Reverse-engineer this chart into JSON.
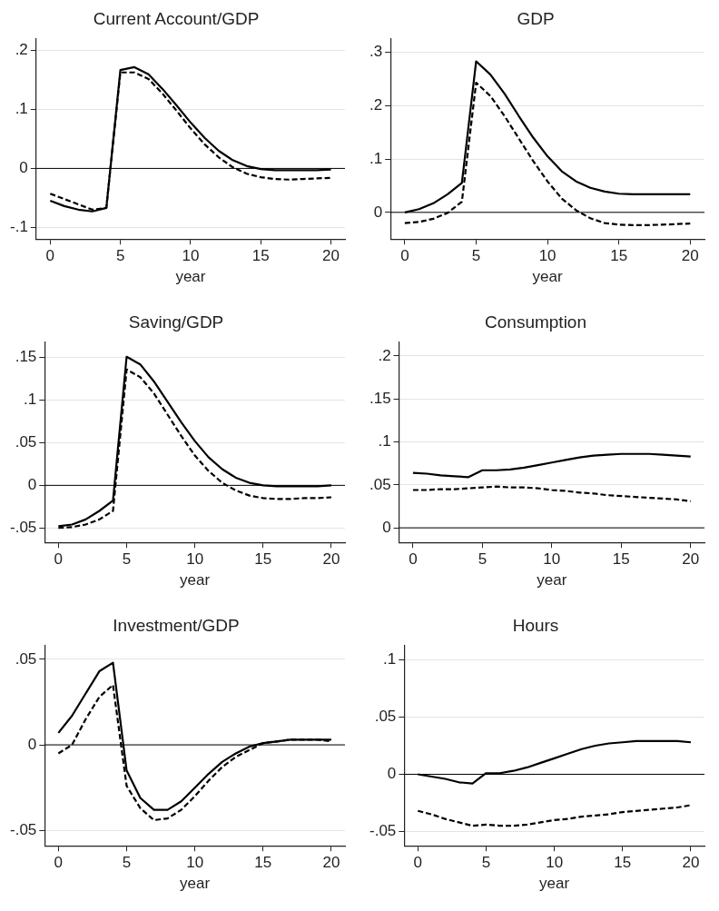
{
  "chart_data": [
    {
      "type": "line",
      "title": "Current Account/GDP",
      "xlabel": "year",
      "x": [
        0,
        1,
        2,
        3,
        4,
        5,
        6,
        7,
        8,
        9,
        10,
        11,
        12,
        13,
        14,
        15,
        16,
        17,
        18,
        19,
        20
      ],
      "xlim": [
        -1,
        21
      ],
      "xticks": [
        0,
        5,
        10,
        15,
        20
      ],
      "ylim": [
        -0.12,
        0.22
      ],
      "yticks": [
        {
          "value": -0.1,
          "label": "-.1"
        },
        {
          "value": 0,
          "label": "0"
        },
        {
          "value": 0.1,
          "label": ".1"
        },
        {
          "value": 0.2,
          "label": ".2"
        }
      ],
      "grid": "y",
      "legend": false,
      "marker": "none",
      "ref_lines": [
        {
          "axis": "y",
          "value": 0,
          "color": "#000000"
        }
      ],
      "series": [
        {
          "color": "#000000",
          "line_style": "solid",
          "values": [
            -0.055,
            -0.064,
            -0.07,
            -0.073,
            -0.067,
            0.167,
            0.172,
            0.16,
            0.135,
            0.107,
            0.078,
            0.052,
            0.03,
            0.014,
            0.004,
            -0.001,
            -0.003,
            -0.003,
            -0.003,
            -0.003,
            -0.002
          ]
        },
        {
          "color": "#000000",
          "line_style": "dashed",
          "values": [
            -0.043,
            -0.052,
            -0.061,
            -0.07,
            -0.067,
            0.163,
            0.163,
            0.152,
            0.127,
            0.098,
            0.068,
            0.041,
            0.019,
            0.002,
            -0.009,
            -0.015,
            -0.018,
            -0.019,
            -0.018,
            -0.017,
            -0.016
          ]
        }
      ]
    },
    {
      "type": "line",
      "title": "GDP",
      "xlabel": "year",
      "x": [
        0,
        1,
        2,
        3,
        4,
        5,
        6,
        7,
        8,
        9,
        10,
        11,
        12,
        13,
        14,
        15,
        16,
        17,
        18,
        19,
        20
      ],
      "xlim": [
        -1,
        21
      ],
      "xticks": [
        0,
        5,
        10,
        15,
        20
      ],
      "ylim": [
        -0.05,
        0.325
      ],
      "yticks": [
        {
          "value": 0,
          "label": "0"
        },
        {
          "value": 0.1,
          "label": ".1"
        },
        {
          "value": 0.2,
          "label": ".2"
        },
        {
          "value": 0.3,
          "label": ".3"
        }
      ],
      "grid": "y",
      "legend": false,
      "marker": "none",
      "ref_lines": [
        {
          "axis": "y",
          "value": 0,
          "color": "#000000"
        }
      ],
      "series": [
        {
          "color": "#000000",
          "line_style": "solid",
          "values": [
            0,
            0.006,
            0.017,
            0.034,
            0.055,
            0.283,
            0.258,
            0.222,
            0.18,
            0.14,
            0.105,
            0.077,
            0.058,
            0.046,
            0.039,
            0.035,
            0.034,
            0.034,
            0.034,
            0.034,
            0.034
          ]
        },
        {
          "color": "#000000",
          "line_style": "dashed",
          "values": [
            -0.02,
            -0.018,
            -0.012,
            -0.001,
            0.02,
            0.243,
            0.218,
            0.18,
            0.138,
            0.096,
            0.058,
            0.026,
            0.004,
            -0.011,
            -0.02,
            -0.023,
            -0.024,
            -0.024,
            -0.023,
            -0.022,
            -0.021
          ]
        }
      ]
    },
    {
      "type": "line",
      "title": "Saving/GDP",
      "xlabel": "year",
      "x": [
        0,
        1,
        2,
        3,
        4,
        5,
        6,
        7,
        8,
        9,
        10,
        11,
        12,
        13,
        14,
        15,
        16,
        17,
        18,
        19,
        20
      ],
      "xlim": [
        -1,
        21
      ],
      "xticks": [
        0,
        5,
        10,
        15,
        20
      ],
      "ylim": [
        -0.067,
        0.168
      ],
      "yticks": [
        {
          "value": -0.05,
          "label": "-.05"
        },
        {
          "value": 0,
          "label": "0"
        },
        {
          "value": 0.05,
          "label": ".05"
        },
        {
          "value": 0.1,
          "label": ".1"
        },
        {
          "value": 0.15,
          "label": ".15"
        }
      ],
      "grid": "y",
      "legend": false,
      "marker": "none",
      "ref_lines": [
        {
          "axis": "y",
          "value": 0,
          "color": "#000000"
        }
      ],
      "series": [
        {
          "color": "#000000",
          "line_style": "solid",
          "values": [
            -0.048,
            -0.046,
            -0.04,
            -0.03,
            -0.018,
            0.151,
            0.142,
            0.122,
            0.098,
            0.074,
            0.052,
            0.033,
            0.019,
            0.009,
            0.003,
            0,
            -0.001,
            -0.001,
            -0.001,
            -0.001,
            0
          ]
        },
        {
          "color": "#000000",
          "line_style": "dashed",
          "values": [
            -0.05,
            -0.049,
            -0.046,
            -0.04,
            -0.03,
            0.136,
            0.127,
            0.108,
            0.083,
            0.058,
            0.035,
            0.017,
            0.003,
            -0.006,
            -0.012,
            -0.015,
            -0.016,
            -0.016,
            -0.015,
            -0.015,
            -0.014
          ]
        }
      ]
    },
    {
      "type": "line",
      "title": "Consumption",
      "xlabel": "year",
      "x": [
        0,
        1,
        2,
        3,
        4,
        5,
        6,
        7,
        8,
        9,
        10,
        11,
        12,
        13,
        14,
        15,
        16,
        17,
        18,
        19,
        20
      ],
      "xlim": [
        -1,
        21
      ],
      "xticks": [
        0,
        5,
        10,
        15,
        20
      ],
      "ylim": [
        -0.017,
        0.216
      ],
      "yticks": [
        {
          "value": 0,
          "label": "0"
        },
        {
          "value": 0.05,
          "label": ".05"
        },
        {
          "value": 0.1,
          "label": ".1"
        },
        {
          "value": 0.15,
          "label": ".15"
        },
        {
          "value": 0.2,
          "label": ".2"
        }
      ],
      "grid": "y",
      "legend": false,
      "marker": "none",
      "ref_lines": [
        {
          "axis": "y",
          "value": 0,
          "color": "#000000"
        }
      ],
      "series": [
        {
          "color": "#000000",
          "line_style": "solid",
          "values": [
            0.064,
            0.063,
            0.061,
            0.06,
            0.059,
            0.067,
            0.067,
            0.068,
            0.07,
            0.073,
            0.076,
            0.079,
            0.082,
            0.084,
            0.085,
            0.086,
            0.086,
            0.086,
            0.085,
            0.084,
            0.083
          ]
        },
        {
          "color": "#000000",
          "line_style": "dashed",
          "values": [
            0.044,
            0.044,
            0.045,
            0.045,
            0.046,
            0.047,
            0.048,
            0.047,
            0.047,
            0.046,
            0.044,
            0.043,
            0.041,
            0.04,
            0.038,
            0.037,
            0.036,
            0.035,
            0.034,
            0.033,
            0.031
          ]
        }
      ]
    },
    {
      "type": "line",
      "title": "Investment/GDP",
      "xlabel": "year",
      "x": [
        0,
        1,
        2,
        3,
        4,
        5,
        6,
        7,
        8,
        9,
        10,
        11,
        12,
        13,
        14,
        15,
        16,
        17,
        18,
        19,
        20
      ],
      "xlim": [
        -1,
        21
      ],
      "xticks": [
        0,
        5,
        10,
        15,
        20
      ],
      "ylim": [
        -0.059,
        0.058
      ],
      "yticks": [
        {
          "value": -0.05,
          "label": "-.05"
        },
        {
          "value": 0,
          "label": "0"
        },
        {
          "value": 0.05,
          "label": ".05"
        }
      ],
      "grid": "y",
      "legend": false,
      "marker": "none",
      "ref_lines": [
        {
          "axis": "y",
          "value": 0,
          "color": "#000000"
        }
      ],
      "series": [
        {
          "color": "#000000",
          "line_style": "solid",
          "values": [
            0.007,
            0.017,
            0.03,
            0.043,
            0.048,
            -0.015,
            -0.031,
            -0.038,
            -0.038,
            -0.033,
            -0.025,
            -0.017,
            -0.01,
            -0.005,
            -0.001,
            0.001,
            0.002,
            0.003,
            0.003,
            0.003,
            0.003
          ]
        },
        {
          "color": "#000000",
          "line_style": "dashed",
          "values": [
            -0.005,
            0,
            0.015,
            0.028,
            0.035,
            -0.024,
            -0.037,
            -0.044,
            -0.043,
            -0.038,
            -0.03,
            -0.021,
            -0.013,
            -0.007,
            -0.003,
            0.001,
            0.002,
            0.003,
            0.003,
            0.003,
            0.002
          ]
        }
      ]
    },
    {
      "type": "line",
      "title": "Hours",
      "xlabel": "year",
      "x": [
        0,
        1,
        2,
        3,
        4,
        5,
        6,
        7,
        8,
        9,
        10,
        11,
        12,
        13,
        14,
        15,
        16,
        17,
        18,
        19,
        20
      ],
      "xlim": [
        -1,
        21
      ],
      "xticks": [
        0,
        5,
        10,
        15,
        20
      ],
      "ylim": [
        -0.0625,
        0.1125
      ],
      "yticks": [
        {
          "value": -0.05,
          "label": "-.05"
        },
        {
          "value": 0,
          "label": "0"
        },
        {
          "value": 0.05,
          "label": ".05"
        },
        {
          "value": 0.1,
          "label": ".1"
        }
      ],
      "grid": "y",
      "legend": false,
      "marker": "none",
      "ref_lines": [
        {
          "axis": "y",
          "value": 0,
          "color": "#000000"
        }
      ],
      "series": [
        {
          "color": "#000000",
          "line_style": "solid",
          "values": [
            0,
            -0.002,
            -0.004,
            -0.007,
            -0.008,
            0.001,
            0.001,
            0.003,
            0.006,
            0.01,
            0.014,
            0.018,
            0.022,
            0.025,
            0.027,
            0.028,
            0.029,
            0.029,
            0.029,
            0.029,
            0.028
          ]
        },
        {
          "color": "#000000",
          "line_style": "dashed",
          "values": [
            -0.032,
            -0.035,
            -0.039,
            -0.042,
            -0.045,
            -0.044,
            -0.045,
            -0.045,
            -0.044,
            -0.042,
            -0.04,
            -0.039,
            -0.037,
            -0.036,
            -0.035,
            -0.033,
            -0.032,
            -0.031,
            -0.03,
            -0.029,
            -0.027
          ]
        }
      ]
    }
  ]
}
